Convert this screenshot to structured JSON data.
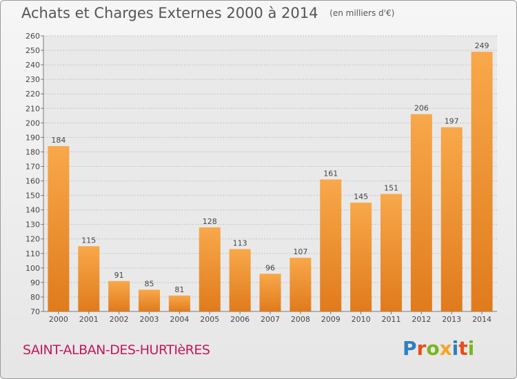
{
  "title": "Achats et Charges Externes 2000 à 2014",
  "unit_label": "(en milliers d'€)",
  "town": "SAINT-ALBAN-DES-HURTIèRES",
  "logo": {
    "letters": [
      "P",
      "r",
      "o",
      "x",
      "i",
      "t",
      "i"
    ],
    "colors": [
      "#2e7fc1",
      "#e94e1b",
      "#7ab51d",
      "#f5a623",
      "#2e7fc1",
      "#e94e1b",
      "#7ab51d"
    ]
  },
  "colors": {
    "bar_light": "#f8a84a",
    "bar_dark": "#e07b1c",
    "text": "#555555",
    "town": "#c2185b"
  },
  "chart_data": {
    "type": "bar",
    "categories": [
      "2000",
      "2001",
      "2002",
      "2003",
      "2004",
      "2005",
      "2006",
      "2007",
      "2008",
      "2009",
      "2010",
      "2011",
      "2012",
      "2013",
      "2014"
    ],
    "values": [
      184,
      115,
      91,
      85,
      81,
      128,
      113,
      96,
      107,
      161,
      145,
      151,
      206,
      197,
      249
    ],
    "ylim": [
      70,
      260
    ],
    "yticks": [
      70,
      80,
      90,
      100,
      110,
      120,
      130,
      140,
      150,
      160,
      170,
      180,
      190,
      200,
      210,
      220,
      230,
      240,
      250,
      260
    ],
    "grid": true
  }
}
